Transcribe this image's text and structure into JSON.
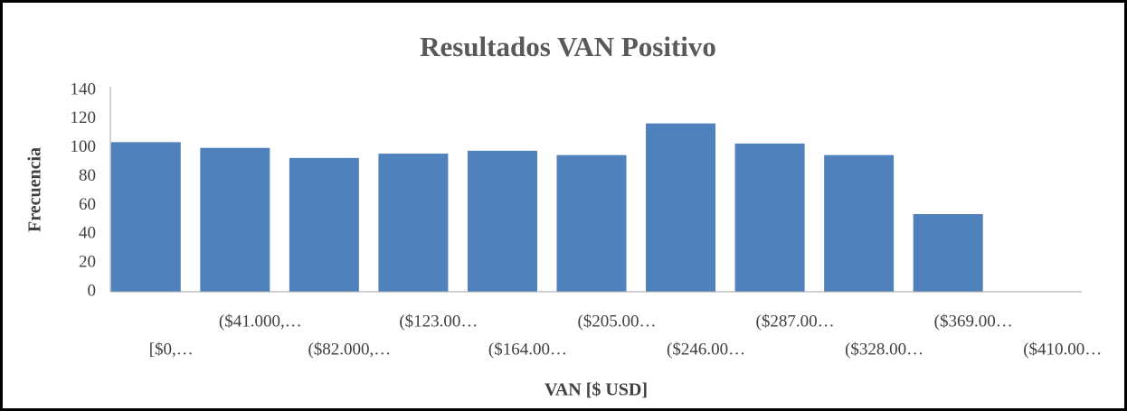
{
  "chart_data": {
    "type": "bar",
    "title": "Resultados VAN Positivo",
    "x_label": "VAN [$ USD]",
    "y_label": "Frecuencia",
    "categories": [
      "[$0,…",
      "($41.000,…",
      "($82.000,…",
      "($123.00…",
      "($164.00…",
      "($205.00…",
      "($246.00…",
      "($287.00…",
      "($328.00…",
      "($369.00…",
      "($410.00…"
    ],
    "values": [
      104,
      100,
      93,
      96,
      98,
      95,
      117,
      103,
      95,
      54,
      0
    ],
    "color": "#4f81bd",
    "ylim": [
      0,
      140
    ],
    "yticks": [
      0,
      20,
      40,
      60,
      80,
      100,
      120,
      140
    ],
    "grid": false
  }
}
